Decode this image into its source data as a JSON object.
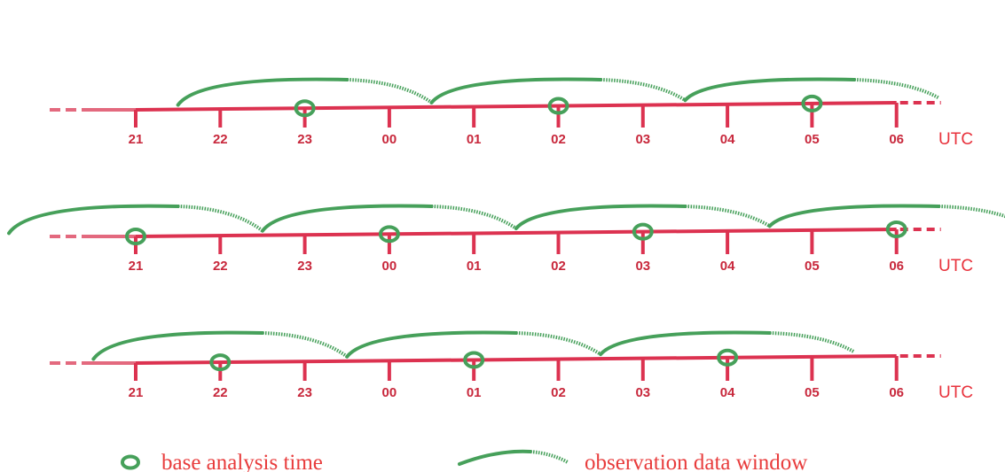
{
  "colors": {
    "timeline": "#dc3250",
    "timeline_faded": "#e3697e",
    "label": "#c8283c",
    "unit": "#e8323c",
    "window": "#46a05a",
    "legend_text": "#e83c3c"
  },
  "timelines": [
    {
      "ticks": [
        "21",
        "22",
        "23",
        "00",
        "01",
        "02",
        "03",
        "04",
        "05",
        "06"
      ],
      "unit": "UTC",
      "analysis_times": [
        "23",
        "02",
        "05"
      ]
    },
    {
      "ticks": [
        "21",
        "22",
        "23",
        "00",
        "01",
        "02",
        "03",
        "04",
        "05",
        "06"
      ],
      "unit": "UTC",
      "analysis_times": [
        "21",
        "00",
        "03",
        "06"
      ]
    },
    {
      "ticks": [
        "21",
        "22",
        "23",
        "00",
        "01",
        "02",
        "03",
        "04",
        "05",
        "06"
      ],
      "unit": "UTC",
      "analysis_times": [
        "22",
        "01",
        "04"
      ]
    }
  ],
  "legend": {
    "circle_icon": "circle-icon",
    "analysis_label": "base analysis time",
    "window_icon": "arc-icon",
    "window_label": "observation data window"
  }
}
